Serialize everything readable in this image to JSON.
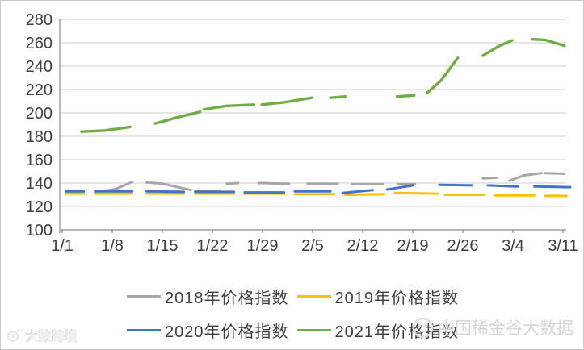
{
  "chart_data": {
    "type": "line",
    "title": "",
    "ylabel": "",
    "xlabel": "",
    "ylim": [
      100,
      280
    ],
    "yticks": [
      100,
      120,
      140,
      160,
      180,
      200,
      220,
      240,
      260,
      280
    ],
    "grid": "horizontal",
    "legend_position": "bottom",
    "x_axis": {
      "tick_labels": [
        "1/1",
        "1/8",
        "1/15",
        "1/22",
        "1/29",
        "2/5",
        "2/12",
        "2/19",
        "2/26",
        "3/4",
        "3/11"
      ],
      "tick_days": [
        0,
        7,
        14,
        21,
        28,
        35,
        42,
        49,
        56,
        63,
        70
      ],
      "day_range": [
        0,
        71
      ]
    },
    "series": [
      {
        "name": "2018年价格指数",
        "color": "#a6a6a6",
        "width": 3,
        "segments": [
          [
            [
              0.5,
              132
            ],
            [
              3,
              131.5
            ]
          ],
          [
            [
              4.6,
              132
            ],
            [
              7.5,
              135
            ],
            [
              9.8,
              141
            ]
          ],
          [
            [
              11.8,
              140.5
            ],
            [
              14,
              139.5
            ],
            [
              18,
              134
            ]
          ],
          [
            [
              18.6,
              133
            ],
            [
              22,
              133.5
            ]
          ],
          [
            [
              23,
              139.5
            ],
            [
              24.6,
              140
            ]
          ],
          [
            [
              27.5,
              140
            ],
            [
              31.7,
              139.5
            ]
          ],
          [
            [
              34.3,
              139.5
            ],
            [
              38.5,
              139.5
            ]
          ],
          [
            [
              40.5,
              139
            ],
            [
              44.8,
              139
            ]
          ],
          [
            [
              47,
              139
            ],
            [
              49.3,
              139
            ]
          ],
          [
            [
              58.8,
              144
            ],
            [
              60.7,
              144.5
            ]
          ],
          [
            [
              62.5,
              142
            ],
            [
              64.5,
              146.5
            ],
            [
              67,
              148.5
            ]
          ],
          [
            [
              67.4,
              148.5
            ],
            [
              70.2,
              148
            ]
          ]
        ]
      },
      {
        "name": "2019年价格指数",
        "color": "#ffc000",
        "width": 3,
        "segments": [
          [
            [
              0.5,
              131
            ],
            [
              3,
              131
            ]
          ],
          [
            [
              4.6,
              131
            ],
            [
              9.8,
              131
            ]
          ],
          [
            [
              11.8,
              131
            ],
            [
              17,
              131
            ]
          ],
          [
            [
              18.6,
              131
            ],
            [
              24,
              131
            ]
          ],
          [
            [
              25.5,
              131
            ],
            [
              31,
              131
            ]
          ],
          [
            [
              32.5,
              130.5
            ],
            [
              38,
              130.5
            ]
          ],
          [
            [
              39.5,
              130
            ],
            [
              45,
              130.5
            ]
          ],
          [
            [
              46.5,
              131.5
            ],
            [
              52.5,
              131
            ]
          ],
          [
            [
              53.5,
              130
            ],
            [
              59,
              130
            ]
          ],
          [
            [
              60.5,
              129.5
            ],
            [
              66,
              129.5
            ]
          ],
          [
            [
              67.5,
              129
            ],
            [
              70.5,
              129
            ]
          ]
        ]
      },
      {
        "name": "2020年价格指数",
        "color": "#4472c4",
        "width": 3,
        "segments": [
          [
            [
              0.5,
              133
            ],
            [
              3,
              133
            ]
          ],
          [
            [
              4.6,
              133
            ],
            [
              9.8,
              133
            ]
          ],
          [
            [
              11.8,
              133
            ],
            [
              17,
              132.5
            ]
          ],
          [
            [
              18.6,
              132.5
            ],
            [
              24,
              132.5
            ]
          ],
          [
            [
              25.5,
              132
            ],
            [
              31,
              132
            ]
          ],
          [
            [
              32.5,
              133
            ],
            [
              37.5,
              133
            ]
          ],
          [
            [
              39.2,
              131.5
            ],
            [
              43.4,
              134
            ]
          ],
          [
            [
              45.4,
              134.5
            ],
            [
              49,
              138
            ]
          ],
          [
            [
              52.7,
              138.5
            ],
            [
              57.3,
              138
            ]
          ],
          [
            [
              59.5,
              138
            ],
            [
              63.7,
              137
            ]
          ],
          [
            [
              66,
              137
            ],
            [
              71,
              136.5
            ]
          ]
        ]
      },
      {
        "name": "2021年价格指数",
        "color": "#70ad47",
        "width": 3.4,
        "segments": [
          [
            [
              2.7,
              184
            ],
            [
              6,
              185
            ],
            [
              9.5,
              188
            ]
          ],
          [
            [
              13,
              191
            ],
            [
              16,
              196
            ],
            [
              19.3,
              201
            ]
          ],
          [
            [
              19.8,
              203
            ],
            [
              23,
              206
            ],
            [
              26.8,
              207
            ]
          ],
          [
            [
              27.9,
              207
            ],
            [
              31,
              209
            ],
            [
              34.9,
              213
            ]
          ],
          [
            [
              37.5,
              213
            ],
            [
              39.6,
              214
            ]
          ],
          [
            [
              46.8,
              214
            ],
            [
              49.2,
              215
            ]
          ],
          [
            [
              51,
              217
            ],
            [
              53,
              228
            ],
            [
              55.3,
              247
            ]
          ],
          [
            [
              58.8,
              249
            ],
            [
              61,
              257
            ],
            [
              62.9,
              262
            ]
          ],
          [
            [
              65.7,
              263
            ],
            [
              67.5,
              262.5
            ],
            [
              70.2,
              257.5
            ]
          ]
        ]
      }
    ],
    "colors": {
      "grid": "#cccccc",
      "axis": "#8c8c8c",
      "tick_text": "#3f3f3f"
    }
  },
  "watermarks": {
    "bottom_left": "大数跨境",
    "bottom_right": "中国稀金谷大数据"
  }
}
